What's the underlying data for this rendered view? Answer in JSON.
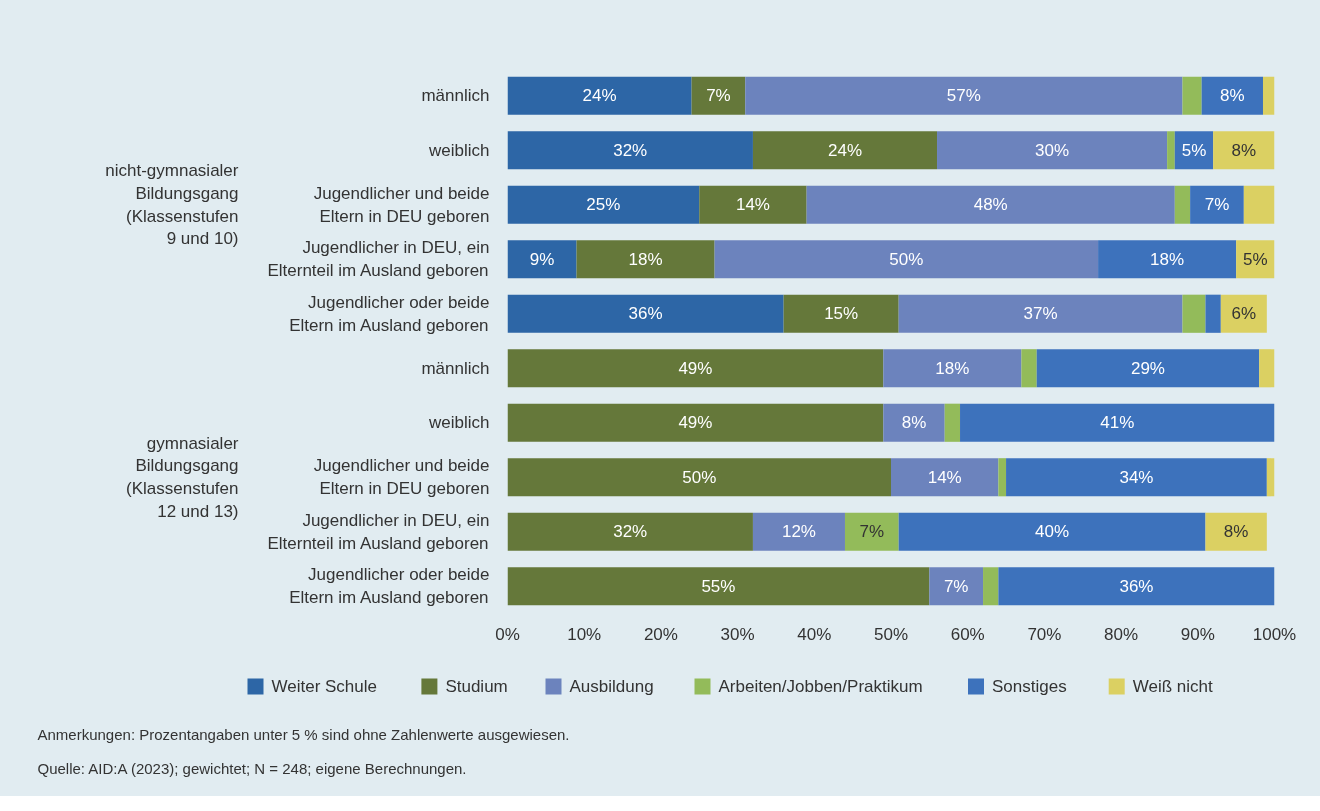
{
  "chart_data": {
    "type": "bar",
    "orientation": "horizontal",
    "stacked": true,
    "categories": [
      "männlich",
      "weiblich",
      "Jugendlicher und beide\nEltern in DEU geboren",
      "Jugendlicher in DEU, ein\nElternteil im Ausland geboren",
      "Jugendlicher oder beide\nEltern im Ausland geboren",
      "männlich",
      "weiblich",
      "Jugendlicher und beide\nEltern in DEU geboren",
      "Jugendlicher in DEU, ein\nElternteil im Ausland geboren",
      "Jugendlicher oder beide\nEltern im Ausland geboren"
    ],
    "series": [
      {
        "name": "Weiter Schule",
        "color": "#2d66a6",
        "values": [
          24,
          32,
          25,
          9,
          36,
          0,
          0,
          0,
          0,
          0
        ],
        "value_labels": [
          "24%",
          "32%",
          "25%",
          "9%",
          "36%",
          null,
          null,
          null,
          null,
          null
        ]
      },
      {
        "name": "Studium",
        "color": "#65783a",
        "values": [
          7,
          24,
          14,
          18,
          15,
          49,
          49,
          50,
          32,
          55
        ],
        "value_labels": [
          "7%",
          "24%",
          "14%",
          "18%",
          "15%",
          "49%",
          "49%",
          "50%",
          "32%",
          "55%"
        ]
      },
      {
        "name": "Ausbildung",
        "color": "#6c83bd",
        "values": [
          57,
          30,
          48,
          50,
          37,
          18,
          8,
          14,
          12,
          7
        ],
        "value_labels": [
          "57%",
          "30%",
          "48%",
          "50%",
          "37%",
          "18%",
          "8%",
          "14%",
          "12%",
          "7%"
        ]
      },
      {
        "name": "Arbeiten/Jobben/Praktikum",
        "color": "#93bb5a",
        "values": [
          2.5,
          1,
          2,
          0,
          3,
          2,
          2,
          1,
          7,
          2
        ],
        "value_labels": [
          null,
          null,
          null,
          null,
          null,
          null,
          null,
          null,
          "7%",
          null
        ]
      },
      {
        "name": "Sonstiges",
        "color": "#3d72bc",
        "values": [
          8,
          5,
          7,
          18,
          2,
          29,
          41,
          34,
          40,
          36
        ],
        "value_labels": [
          "8%",
          "5%",
          "7%",
          "18%",
          null,
          "29%",
          "41%",
          "34%",
          "40%",
          "36%"
        ]
      },
      {
        "name": "Weiß nicht",
        "color": "#dbd062",
        "values": [
          1.5,
          8,
          4,
          5,
          6,
          2,
          0,
          1,
          8,
          0
        ],
        "value_labels": [
          null,
          "8%",
          null,
          "5%",
          "6%",
          null,
          null,
          null,
          "8%",
          null
        ]
      }
    ],
    "xlim": [
      0,
      100
    ],
    "xticks": [
      {
        "value": 0,
        "label": "0%"
      },
      {
        "value": 10,
        "label": "10%"
      },
      {
        "value": 20,
        "label": "20%"
      },
      {
        "value": 30,
        "label": "30%"
      },
      {
        "value": 40,
        "label": "40%"
      },
      {
        "value": 50,
        "label": "50%"
      },
      {
        "value": 60,
        "label": "60%"
      },
      {
        "value": 70,
        "label": "70%"
      },
      {
        "value": 80,
        "label": "80%"
      },
      {
        "value": 90,
        "label": "90%"
      },
      {
        "value": 100,
        "label": "100%"
      }
    ],
    "grid": false,
    "legend": "bottom",
    "annotations": [
      "nicht-gymnasialer\nBildungsgang\n(Klassenstufen\n9 und 10)",
      "gymnasialer\nBildungsgang\n(Klassenstufen\n12 und 13)",
      "Anmerkungen: Prozentangaben unter 5 % sind ohne Zahlenwerte ausgewiesen.",
      "Quelle: AID:A (2023); gewichtet; N = 248; eigene Berechnungen."
    ]
  }
}
